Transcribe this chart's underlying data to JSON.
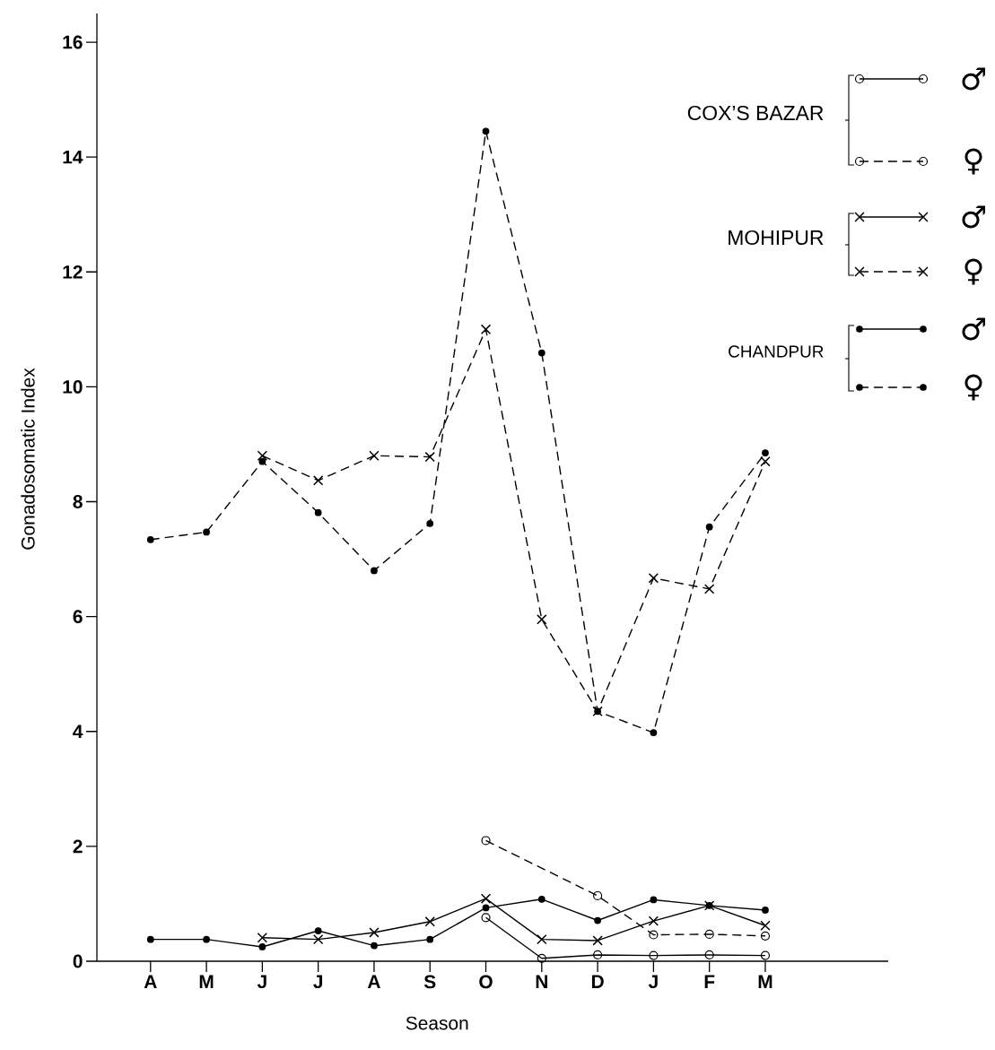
{
  "chart_data": {
    "type": "line",
    "xlabel": "Season",
    "ylabel": "Gonadosomatic   Index",
    "categories": [
      "A",
      "M",
      "J",
      "J",
      "A",
      "S",
      "O",
      "N",
      "D",
      "J",
      "F",
      "M"
    ],
    "ylim": [
      0,
      16.5
    ],
    "yticks": [
      0,
      2,
      4,
      6,
      8,
      10,
      12,
      14,
      16
    ],
    "legend": "top right",
    "grid": false,
    "annotations": [
      "COX’S  BAZAR",
      "MOHIPUR",
      "CHANDPUR"
    ],
    "series": [
      {
        "name": "♂",
        "color": "#000000",
        "marker": "circle",
        "line_style": "solid",
        "values": [
          null,
          null,
          null,
          null,
          null,
          null,
          0.76,
          0.05,
          0.11,
          0.1,
          0.11,
          0.1
        ]
      },
      {
        "name": "♀",
        "color": "#000000",
        "marker": "circle",
        "line_style": "dashed",
        "values": [
          null,
          null,
          null,
          null,
          null,
          null,
          2.1,
          null,
          1.14,
          0.46,
          0.47,
          0.44
        ]
      },
      {
        "name": "♂",
        "color": "#000000",
        "marker": "cross",
        "line_style": "solid",
        "values": [
          null,
          null,
          0.41,
          0.38,
          0.5,
          0.69,
          1.09,
          0.38,
          0.36,
          0.7,
          0.97,
          0.62
        ]
      },
      {
        "name": "♀",
        "color": "#000000",
        "marker": "cross",
        "line_style": "dashed",
        "values": [
          null,
          null,
          8.8,
          8.37,
          8.8,
          8.78,
          11.0,
          5.95,
          4.35,
          6.67,
          6.48,
          8.7
        ]
      },
      {
        "name": "♂",
        "color": "#000000",
        "marker": "dot",
        "line_style": "solid",
        "values": [
          0.38,
          0.38,
          0.25,
          0.53,
          0.27,
          0.38,
          0.93,
          1.08,
          0.71,
          1.07,
          0.97,
          0.89
        ]
      },
      {
        "name": "♀",
        "color": "#000000",
        "marker": "dot",
        "line_style": "dashed",
        "values": [
          7.34,
          7.47,
          8.7,
          7.81,
          6.8,
          7.62,
          14.45,
          10.59,
          4.35,
          3.98,
          7.56,
          8.85
        ]
      }
    ]
  }
}
